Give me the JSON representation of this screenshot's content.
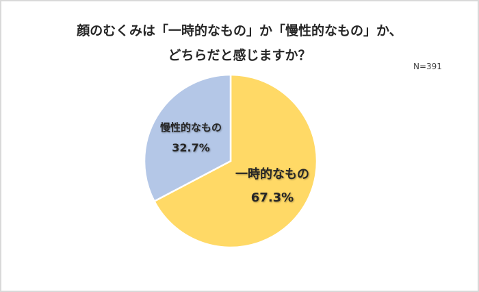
{
  "title": {
    "line1": "顔のむくみは「一時的なもの」か「慢性的なもの」か、",
    "line2": "どちらだと感じますか？"
  },
  "sample_size": "N=391",
  "colors": {
    "temporary": "#ffd966",
    "chronic": "#b4c7e7",
    "border": "#d9d9d9"
  },
  "slices": [
    {
      "name": "一時的なもの",
      "percent_label": "67.3%"
    },
    {
      "name": "慢性的なもの",
      "percent_label": "32.7%"
    }
  ],
  "chart_data": {
    "type": "pie",
    "title": "顔のむくみは「一時的なもの」か「慢性的なもの」か、どちらだと感じますか？",
    "annotation": "N=391",
    "categories": [
      "一時的なもの",
      "慢性的なもの"
    ],
    "values": [
      67.3,
      32.7
    ],
    "colors": [
      "#ffd966",
      "#b4c7e7"
    ],
    "start_angle": "12 o'clock, clockwise",
    "legend": "none (data labels on slices)"
  }
}
